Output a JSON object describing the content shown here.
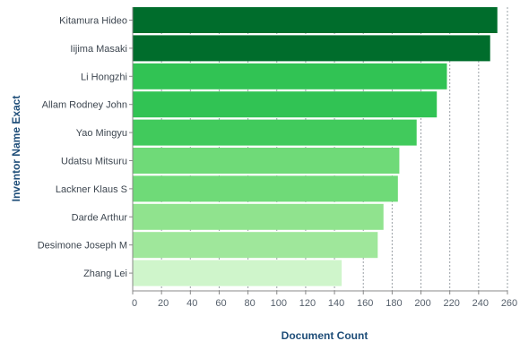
{
  "chart_data": {
    "type": "bar",
    "orientation": "horizontal",
    "categories": [
      "Kitamura Hideo",
      "Iijima Masaki",
      "Li Hongzhi",
      "Allam Rodney John",
      "Yao Mingyu",
      "Udatsu Mitsuru",
      "Lackner Klaus S",
      "Darde Arthur",
      "Desimone Joseph M",
      "Zhang Lei"
    ],
    "values": [
      253,
      248,
      218,
      211,
      197,
      185,
      184,
      174,
      170,
      145
    ],
    "colors": [
      "#006d2c",
      "#006d2c",
      "#31c354",
      "#31c354",
      "#41ca5c",
      "#6fda78",
      "#6fda78",
      "#90e38e",
      "#9fe79b",
      "#cff5cb"
    ],
    "xlabel": "Document Count",
    "ylabel": "Inventor Name Exact",
    "xlim": [
      0,
      260
    ],
    "xticks": [
      0,
      20,
      40,
      60,
      80,
      100,
      120,
      140,
      160,
      180,
      200,
      220,
      240,
      260
    ],
    "grid": "vertical dashed"
  }
}
